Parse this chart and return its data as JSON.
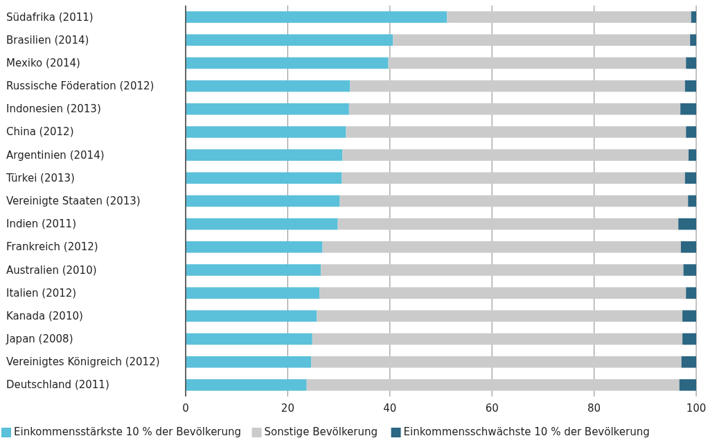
{
  "chart_data": {
    "type": "bar",
    "orientation": "horizontal",
    "stacked": true,
    "categories": [
      "Südafrika (2011)",
      "Brasilien (2014)",
      "Mexiko (2014)",
      "Russische Föderation (2012)",
      "Indonesien (2013)",
      "China (2012)",
      "Argentinien (2014)",
      "Türkei (2013)",
      "Vereinigte Staaten (2013)",
      "Indien (2011)",
      "Frankreich (2012)",
      "Australien (2010)",
      "Italien (2012)",
      "Kanada (2010)",
      "Japan (2008)",
      "Vereinigtes Königreich (2012)",
      "Deutschland (2011)"
    ],
    "series": [
      {
        "name": "Einkommensstärkste 10 % der Bevölkerung",
        "color": "#5bc0da",
        "values": [
          51.2,
          40.6,
          39.7,
          32.2,
          32.0,
          31.4,
          30.7,
          30.6,
          30.2,
          29.8,
          26.8,
          26.5,
          26.2,
          25.7,
          24.8,
          24.6,
          23.7
        ]
      },
      {
        "name": "Sonstige Bevölkerung",
        "color": "#cbcbcb",
        "values": [
          47.8,
          58.2,
          58.3,
          65.6,
          64.9,
          66.6,
          67.8,
          67.2,
          68.2,
          66.7,
          70.2,
          71.0,
          71.8,
          71.6,
          72.5,
          72.5,
          73.0
        ]
      },
      {
        "name": "Einkommensschwächste 10 % der Bevölkerung",
        "color": "#2b6683",
        "values": [
          1.0,
          1.2,
          2.0,
          2.2,
          3.1,
          2.0,
          1.5,
          2.2,
          1.6,
          3.5,
          3.0,
          2.5,
          2.0,
          2.7,
          2.7,
          2.9,
          3.3
        ]
      }
    ],
    "xlim": [
      0,
      100
    ],
    "xticks": [
      0,
      20,
      40,
      60,
      80,
      100
    ],
    "grid": "x",
    "legend": "bottom"
  }
}
